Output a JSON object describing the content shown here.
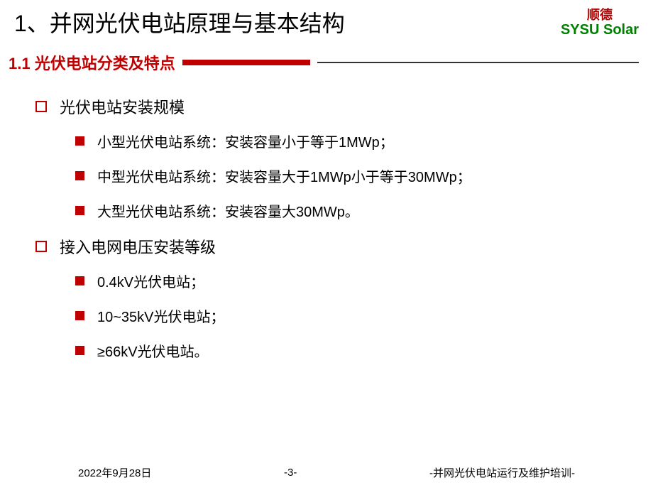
{
  "header": {
    "title": "1、并网光伏电站原理与基本结构",
    "logo_cn": "顺德",
    "logo_en": "SYSU Solar"
  },
  "subtitle": {
    "number": "1.1",
    "text": "光伏电站分类及特点"
  },
  "sections": [
    {
      "heading": "光伏电站安装规模",
      "items": [
        "小型光伏电站系统：安装容量小于等于1MWp；",
        "中型光伏电站系统：安装容量大于1MWp小于等于30MWp；",
        "大型光伏电站系统：安装容量大30MWp。"
      ]
    },
    {
      "heading": "接入电网电压安装等级",
      "items": [
        "0.4kV光伏电站；",
        "10~35kV光伏电站；",
        "≥66kV光伏电站。"
      ]
    }
  ],
  "footer": {
    "date": "2022年9月28日",
    "page": "-3-",
    "caption": "-并网光伏电站运行及维护培训-"
  },
  "colors": {
    "accent_red": "#c00000",
    "logo_red": "#b00000",
    "logo_green": "#008000",
    "text_black": "#000000"
  }
}
